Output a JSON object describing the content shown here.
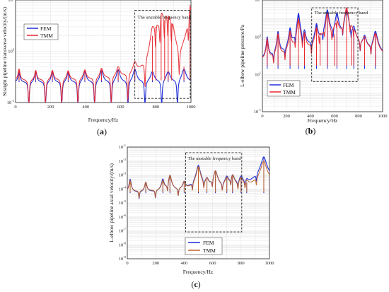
{
  "panels": [
    {
      "id": "a",
      "label": "a",
      "xlabel": "Frequency/Hz",
      "ylabel": "Straight pipeline transverse velocity/(m/s)",
      "band_label": "The unstable frequency band",
      "xlim": [
        0,
        1000
      ],
      "xticks": [
        "0",
        "200",
        "400",
        "600",
        "800",
        "1000"
      ],
      "ylog": [
        -1,
        1
      ],
      "ytick_labels": [
        "10",
        "10",
        "10"
      ],
      "ytick_exps": [
        "-1",
        "0",
        "1"
      ],
      "band_range": [
        680,
        1000
      ],
      "legend": [
        {
          "name": "FEM",
          "color": "#1f2fd6"
        },
        {
          "name": "TMM",
          "color": "#e8282f"
        }
      ]
    },
    {
      "id": "b",
      "label": "b",
      "xlabel": "Frequency/Hz",
      "ylabel": "L-elbow pipeline pressure/Pa",
      "band_label": "The unstable frequency band",
      "xlim": [
        0,
        1000
      ],
      "xticks": [
        "0",
        "200",
        "400",
        "600",
        "800",
        "1000"
      ],
      "ylog": [
        -1,
        5
      ],
      "ytick_labels": [
        "10",
        "10",
        "10",
        "10"
      ],
      "ytick_exps": [
        "-1",
        "1",
        "3",
        "5"
      ],
      "band_range": [
        410,
        800
      ],
      "legend": [
        {
          "name": "FEM",
          "color": "#1f2fd6"
        },
        {
          "name": "TMM",
          "color": "#e8282f"
        }
      ]
    },
    {
      "id": "c",
      "label": "c",
      "xlabel": "Frequency/Hz",
      "ylabel": "L-elbow pipeline axial velocity/(m/s)",
      "band_label": "The unstable frequency band",
      "xlim": [
        0,
        1000
      ],
      "xticks": [
        "0",
        "200",
        "400",
        "600",
        "800",
        "1000"
      ],
      "ylog": [
        -9,
        -1
      ],
      "ytick_labels": [
        "10",
        "10",
        "10",
        "10",
        "10",
        "10",
        "10",
        "10",
        "10"
      ],
      "ytick_exps": [
        "-9",
        "-8",
        "-7",
        "-6",
        "-5",
        "-4",
        "-3",
        "-2",
        "-1"
      ],
      "band_range": [
        410,
        810
      ],
      "legend": [
        {
          "name": "FEM",
          "color": "#1f2fd6"
        },
        {
          "name": "TMM",
          "color": "#c0622a"
        }
      ]
    }
  ],
  "chart_data": [
    {
      "type": "line",
      "panel": "a",
      "xlabel": "Frequency/Hz",
      "ylabel": "Straight pipeline transverse velocity/(m/s)",
      "xlim": [
        0,
        1000
      ],
      "ylim": [
        0.1,
        10
      ],
      "yscale": "log",
      "grid": true,
      "legend_position": "upper-left",
      "annotation": "The unstable frequency band",
      "series": [
        {
          "name": "FEM",
          "peaks_x": [
            20,
            115,
            210,
            300,
            395,
            490,
            585,
            680,
            780,
            870,
            960
          ],
          "peaks_y": [
            0.4,
            0.42,
            0.41,
            0.4,
            0.42,
            0.43,
            0.44,
            0.45,
            0.4,
            0.4,
            0.45
          ],
          "baseline": 0.25
        },
        {
          "name": "TMM",
          "peaks_x": [
            20,
            115,
            210,
            300,
            395,
            490,
            585,
            680,
            780,
            800,
            830,
            850,
            870,
            890,
            960,
            995
          ],
          "peaks_y": [
            0.45,
            0.42,
            0.42,
            0.41,
            0.42,
            0.44,
            0.45,
            0.5,
            2.0,
            3.0,
            5.0,
            4.0,
            5.0,
            3.5,
            0.5,
            8.0
          ],
          "baseline": 0.27
        }
      ]
    },
    {
      "type": "line",
      "panel": "b",
      "xlabel": "Frequency/Hz",
      "ylabel": "L-elbow pipeline pressure/Pa",
      "xlim": [
        0,
        1000
      ],
      "ylim": [
        0.1,
        100000
      ],
      "yscale": "log",
      "grid": true,
      "legend_position": "lower-left",
      "annotation": "The unstable frequency band",
      "series": [
        {
          "name": "FEM",
          "peaks_x": [
            40,
            130,
            230,
            300,
            350,
            450,
            540,
            620,
            700,
            760,
            850,
            940
          ],
          "peaks_y": [
            1000,
            2000,
            3000,
            20000,
            2000,
            5000,
            30000,
            20000,
            30000,
            3000,
            1000,
            2000
          ],
          "baseline": 20
        },
        {
          "name": "TMM",
          "peaks_x": [
            40,
            130,
            230,
            300,
            350,
            450,
            480,
            540,
            600,
            620,
            700,
            740,
            760,
            850,
            940
          ],
          "peaks_y": [
            800,
            1500,
            2000,
            10000,
            1500,
            3000,
            1000,
            20000,
            1500,
            10000,
            40000,
            1500,
            2000,
            800,
            1500
          ],
          "baseline": 30
        }
      ]
    },
    {
      "type": "line",
      "panel": "c",
      "xlabel": "Frequency/Hz",
      "ylabel": "L-elbow pipeline axial velocity/(m/s)",
      "xlim": [
        0,
        1000
      ],
      "ylim": [
        1e-09,
        0.1
      ],
      "yscale": "log",
      "grid": true,
      "legend_position": "lower-right",
      "annotation": "The unstable frequency band",
      "series": [
        {
          "name": "FEM",
          "peaks_x": [
            20,
            130,
            250,
            300,
            400,
            500,
            560,
            620,
            700,
            740,
            800,
            840,
            960
          ],
          "peaks_y": [
            0.0005,
            0.0003,
            0.0005,
            0.001,
            0.0003,
            0.005,
            0.0005,
            0.002,
            0.0007,
            0.001,
            0.0007,
            0.0003,
            0.02
          ],
          "baseline": 5e-05
        },
        {
          "name": "TMM",
          "peaks_x": [
            20,
            130,
            250,
            300,
            400,
            500,
            560,
            620,
            700,
            740,
            800,
            840,
            960
          ],
          "peaks_y": [
            0.0004,
            0.0003,
            0.0004,
            0.001,
            0.0003,
            0.004,
            0.0005,
            0.002,
            0.0006,
            0.001,
            0.0006,
            0.0003,
            0.01
          ],
          "baseline": 6e-05
        }
      ]
    }
  ]
}
